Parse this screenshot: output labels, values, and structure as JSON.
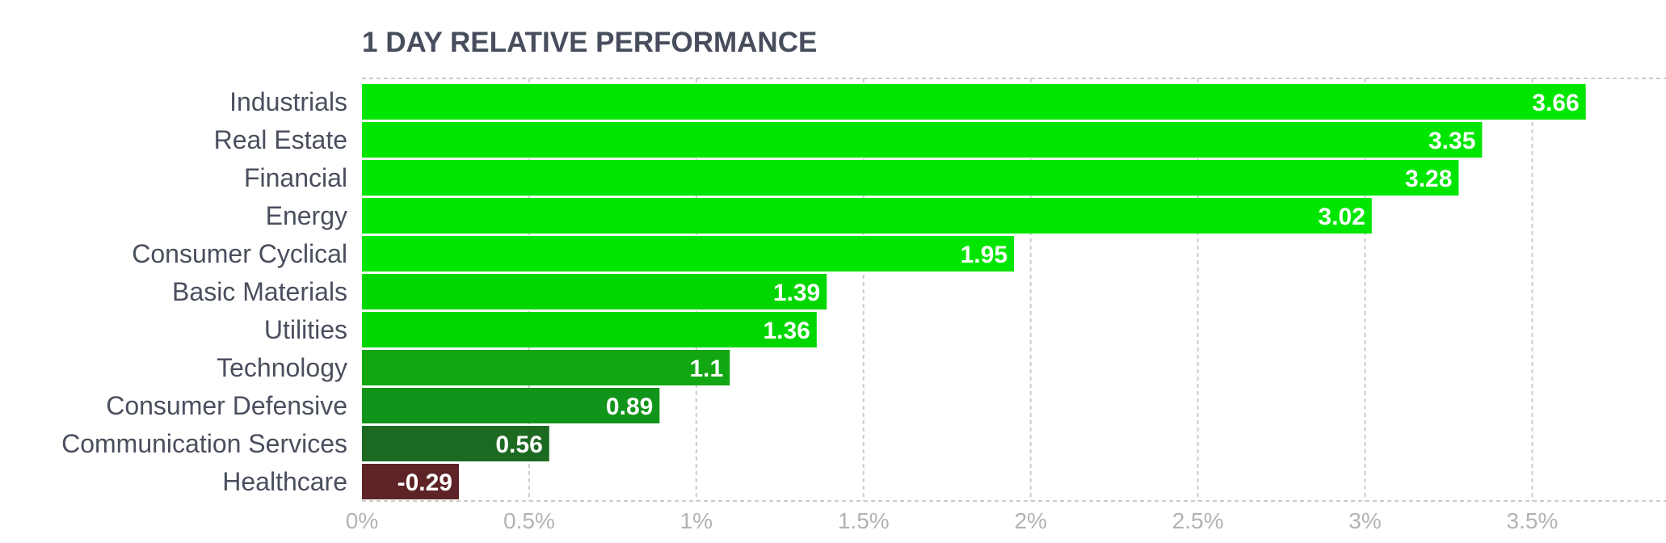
{
  "chart_data": {
    "type": "bar",
    "orientation": "horizontal",
    "title": "1 DAY RELATIVE PERFORMANCE",
    "xlabel": "",
    "ylabel": "",
    "categories": [
      "Industrials",
      "Real Estate",
      "Financial",
      "Energy",
      "Consumer Cyclical",
      "Basic Materials",
      "Utilities",
      "Technology",
      "Consumer Defensive",
      "Communication Services",
      "Healthcare"
    ],
    "values": [
      3.66,
      3.35,
      3.28,
      3.02,
      1.95,
      1.39,
      1.36,
      1.1,
      0.89,
      0.56,
      -0.29
    ],
    "value_labels": [
      "3.66",
      "3.35",
      "3.28",
      "3.02",
      "1.95",
      "1.39",
      "1.36",
      "1.1",
      "0.89",
      "0.56",
      "-0.29"
    ],
    "bar_colors": [
      "#00e600",
      "#00e600",
      "#00e600",
      "#00e600",
      "#00e600",
      "#00d700",
      "#00d600",
      "#11a612",
      "#11941a",
      "#1c6a21",
      "#5e2326"
    ],
    "xlim": [
      0,
      3.9
    ],
    "x_ticks": [
      0,
      0.5,
      1,
      1.5,
      2,
      2.5,
      3,
      3.5
    ],
    "x_tick_labels": [
      "0%",
      "0.5%",
      "1%",
      "1.5%",
      "2%",
      "2.5%",
      "3%",
      "3.5%"
    ],
    "grid": true,
    "bar_magnitude": "absolute",
    "colors": {
      "title": "#474d5c",
      "category_text": "#4a4f5e",
      "tick_text": "#b3b3b3",
      "grid": "#cccccc",
      "value_text": "#ffffff"
    }
  }
}
